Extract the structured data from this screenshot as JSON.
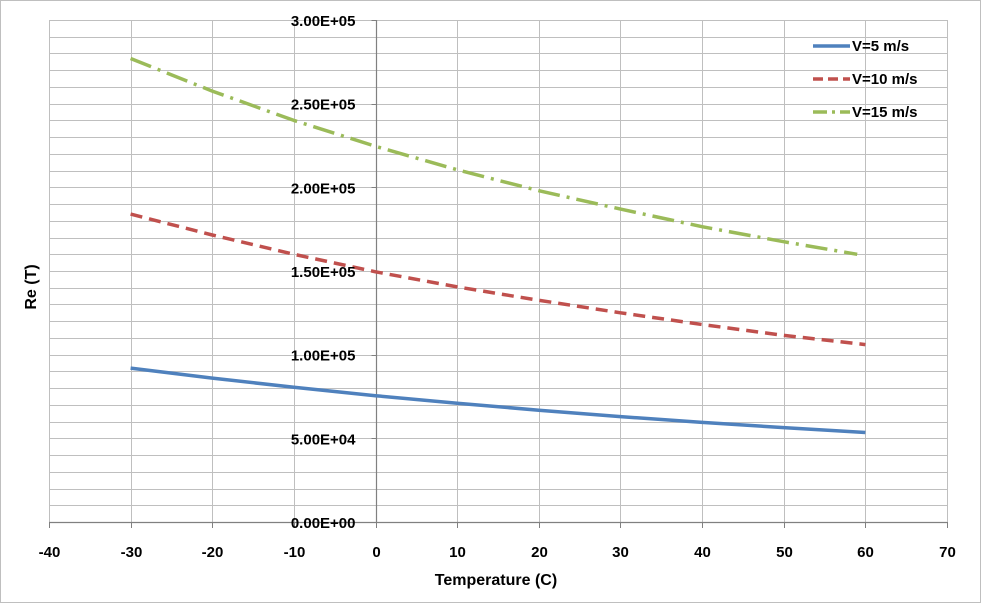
{
  "chart_data": {
    "type": "line",
    "title": "",
    "xlabel": "Temperature  (C)",
    "ylabel": "Re (T)",
    "xlim": [
      -40,
      70
    ],
    "ylim": [
      0,
      300000
    ],
    "x_ticks": [
      -40,
      -30,
      -20,
      -10,
      0,
      10,
      20,
      30,
      40,
      50,
      60,
      70
    ],
    "x_tick_labels": [
      "-40",
      "-30",
      "-20",
      "-10",
      "0",
      "10",
      "20",
      "30",
      "40",
      "50",
      "60",
      "70"
    ],
    "y_ticks": [
      0,
      50000,
      100000,
      150000,
      200000,
      250000,
      300000
    ],
    "y_tick_labels": [
      "0.00E+00",
      "5.00E+04",
      "1.00E+05",
      "1.50E+05",
      "2.00E+05",
      "2.50E+05",
      "3.00E+05"
    ],
    "y_minor_step": 10000,
    "grid": true,
    "legend_position": "top-right",
    "series": [
      {
        "name": "V=5 m/s",
        "color": "#4f81bd",
        "dash": "solid",
        "x": [
          -30,
          -20,
          -10,
          0,
          10,
          20,
          30,
          40,
          50,
          60
        ],
        "values": [
          92000,
          86000,
          80500,
          75500,
          71000,
          66800,
          63000,
          59500,
          56400,
          53500
        ]
      },
      {
        "name": "V=10 m/s",
        "color": "#c0504d",
        "dash": "dashed",
        "x": [
          -30,
          -20,
          -10,
          0,
          10,
          20,
          30,
          40,
          50,
          60
        ],
        "values": [
          184000,
          171500,
          160000,
          149500,
          140500,
          132500,
          125000,
          118000,
          111500,
          106000
        ]
      },
      {
        "name": "V=15 m/s",
        "color": "#9bbb59",
        "dash": "dashdot",
        "x": [
          -30,
          -20,
          -10,
          0,
          10,
          20,
          30,
          40,
          50,
          59
        ],
        "values": [
          277000,
          257500,
          240000,
          224500,
          210500,
          198000,
          187000,
          176500,
          167500,
          160000
        ]
      }
    ]
  }
}
